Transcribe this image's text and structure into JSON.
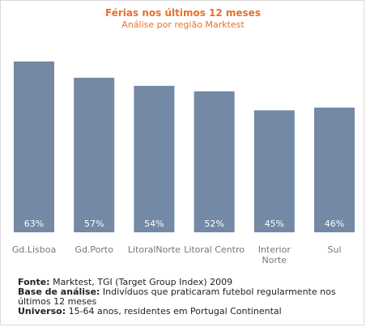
{
  "chart_data": {
    "type": "bar",
    "title": "Férias nos últimos 12 meses",
    "subtitle": "Análise por região Marktest",
    "categories": [
      "Gd.Lisboa",
      "Gd.Porto",
      "LitoralNorte",
      "Litoral Centro",
      "Interior Norte",
      "Sul"
    ],
    "category_lines": [
      [
        "Gd.Lisboa"
      ],
      [
        "Gd.Porto"
      ],
      [
        "LitoralNorte"
      ],
      [
        "Litoral Centro"
      ],
      [
        "Interior",
        "Norte"
      ],
      [
        "Sul"
      ]
    ],
    "values": [
      63,
      57,
      54,
      52,
      45,
      46
    ],
    "value_labels": [
      "63%",
      "57%",
      "54%",
      "52%",
      "45%",
      "46%"
    ],
    "ylim": [
      0,
      63
    ],
    "grid": false,
    "colors": {
      "bar": "#7389a6",
      "value_label": "#ffffff",
      "category_label": "#777777",
      "title": "#e8702a"
    }
  },
  "notes": {
    "fonte_label": "Fonte:",
    "fonte_text": " Marktest, TGI (Target Group Index) 2009",
    "base_label": "Base de análise:",
    "base_text": "  Indivíduos que praticaram futebol regularmente nos últimos 12 meses",
    "universo_label": "Universo:",
    "universo_text": " 15-64 anos, residentes em Portugal Continental"
  }
}
